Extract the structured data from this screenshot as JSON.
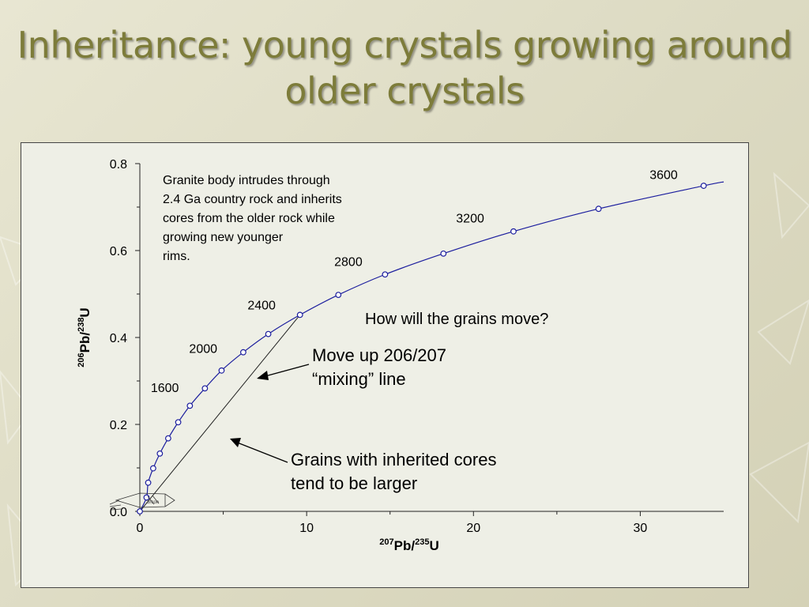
{
  "slide": {
    "title": "Inheritance: young crystals growing around older crystals"
  },
  "colors": {
    "title": "#7d7c3a",
    "curve": "#1c1e9e",
    "plot_bg": "#eeefe6"
  },
  "chart_data": {
    "type": "line",
    "title": "",
    "xlabel": {
      "sup1": "207",
      "main1": "Pb/",
      "sup2": "235",
      "main2": "U"
    },
    "ylabel": {
      "sup1": "206",
      "main1": "Pb/",
      "sup2": "238",
      "main2": "U"
    },
    "xlim": [
      0,
      35
    ],
    "ylim": [
      0,
      0.8
    ],
    "x_ticks": [
      0,
      10,
      20,
      30
    ],
    "y_ticks": [
      0.0,
      0.2,
      0.4,
      0.6,
      0.8
    ],
    "x_tick_labels": [
      "0",
      "10",
      "20",
      "30"
    ],
    "y_tick_labels": [
      "0.0",
      "0.2",
      "0.4",
      "0.6",
      "0.8"
    ],
    "series": [
      {
        "type": "concordia",
        "points": [
          {
            "x": 0,
            "y": 0
          },
          {
            "x": 0.4,
            "y": 0.032
          },
          {
            "x": 0.5,
            "y": 0.066
          },
          {
            "x": 0.8,
            "y": 0.099
          },
          {
            "x": 1.2,
            "y": 0.133
          },
          {
            "x": 1.7,
            "y": 0.168
          },
          {
            "x": 2.3,
            "y": 0.205
          },
          {
            "x": 3.0,
            "y": 0.243
          },
          {
            "x": 3.9,
            "y": 0.283
          },
          {
            "x": 4.9,
            "y": 0.324
          },
          {
            "x": 6.2,
            "y": 0.366
          },
          {
            "x": 7.7,
            "y": 0.408
          },
          {
            "x": 9.6,
            "y": 0.452
          },
          {
            "x": 11.9,
            "y": 0.498
          },
          {
            "x": 14.7,
            "y": 0.545
          },
          {
            "x": 18.2,
            "y": 0.593
          },
          {
            "x": 22.4,
            "y": 0.644
          },
          {
            "x": 27.5,
            "y": 0.696
          },
          {
            "x": 33.8,
            "y": 0.749
          }
        ],
        "curve_end": {
          "x": 35,
          "y": 0.758
        }
      }
    ],
    "age_labels": [
      {
        "text": "1600",
        "x": 1.5,
        "y": 0.275
      },
      {
        "text": "2000",
        "x": 3.8,
        "y": 0.365
      },
      {
        "text": "2400",
        "x": 7.3,
        "y": 0.465
      },
      {
        "text": "2800",
        "x": 12.5,
        "y": 0.565
      },
      {
        "text": "3200",
        "x": 19.8,
        "y": 0.665
      },
      {
        "text": "3600",
        "x": 31.4,
        "y": 0.765
      }
    ],
    "mixing_line": {
      "from": {
        "x": 0,
        "y": 0
      },
      "to": {
        "x": 9.6,
        "y": 0.452
      }
    },
    "annotations": {
      "granite_note": [
        "Granite body intrudes through",
        "2.4 Ga country rock and inherits",
        "cores from the older rock while",
        "growing new younger",
        "rims."
      ],
      "question": "How will the grains move?",
      "mixing_note": [
        "Move up 206/207",
        "“mixing” line"
      ],
      "grains_note": [
        "Grains with inherited cores",
        "tend to be larger"
      ]
    }
  }
}
